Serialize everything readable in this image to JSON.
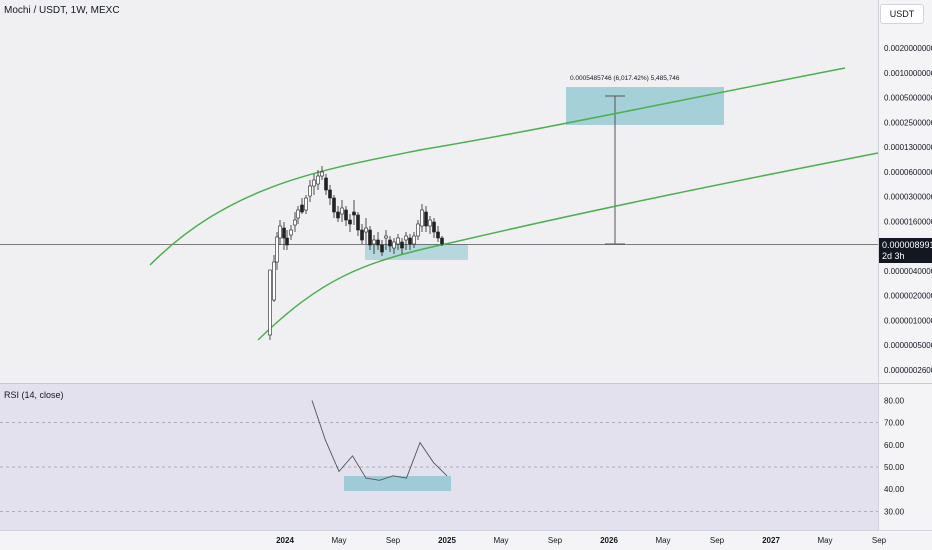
{
  "header": {
    "title": "Mochi / USDT, 1W, MEXC",
    "currency_button": "USDT"
  },
  "price_tag": {
    "value": "0.0000089919",
    "countdown": "2d 3h"
  },
  "measure": {
    "label": "0.0005485746 (6,017.42%) 5,485,746"
  },
  "indicator": {
    "label": "RSI (14, close)"
  },
  "colors": {
    "background": "#f0f0f3",
    "rsi_background": "#e3e1ee",
    "trend_line": "#4caf50",
    "highlight_box": "#8ec6cf",
    "candle_up": "#ffffff",
    "candle_down": "#222222"
  },
  "chart_data": [
    {
      "type": "candlestick",
      "title": "Mochi / USDT, 1W, MEXC",
      "yscale": "log",
      "x_tick_labels": [
        "2024",
        "May",
        "Sep",
        "2025",
        "May",
        "Sep",
        "2026",
        "May",
        "Sep",
        "2027",
        "May",
        "Sep"
      ],
      "y_tick_labels": [
        "0.0020000000",
        "0.0010000000",
        "0.0005000000",
        "0.0002500000",
        "0.0001300000",
        "0.0000600000",
        "0.0000300000",
        "0.0000160000",
        "0.0000089919",
        "0.0000040000",
        "0.0000020000",
        "0.0000010000",
        "0.0000005000",
        "0.0000002600"
      ],
      "last_price": 8.9919e-06,
      "channel_upper": [
        [
          "2023-09",
          4e-06
        ],
        [
          "2024-03",
          4.2e-05
        ],
        [
          "2025-01",
          0.00019
        ],
        [
          "2026-01",
          0.00055
        ],
        [
          "2026-10",
          0.0011
        ]
      ],
      "channel_lower": [
        [
          "2023-11",
          4e-07
        ],
        [
          "2024-09",
          5.5e-06
        ],
        [
          "2025-01",
          9e-06
        ],
        [
          "2026-01",
          3.1e-05
        ],
        [
          "2026-11",
          7.5e-05
        ]
      ],
      "target_box": {
        "x": [
          "2025-08",
          "2026-05"
        ],
        "y": [
          0.00024,
          0.00072
        ]
      },
      "support_box": {
        "x": [
          "2024-07",
          "2025-01"
        ],
        "y": [
          6e-06,
          9e-06
        ]
      }
    },
    {
      "type": "line",
      "title": "RSI (14, close)",
      "y_tick_labels": [
        "80.00",
        "70.00",
        "60.00",
        "50.00",
        "40.00",
        "30.00"
      ],
      "ylim": [
        27,
        82
      ],
      "bands": [
        70,
        50,
        30
      ],
      "x": [
        "2024-03",
        "2024-04",
        "2024-05",
        "2024-06",
        "2024-07",
        "2024-08",
        "2024-09",
        "2024-10",
        "2024-11",
        "2024-12",
        "2025-01"
      ],
      "values": [
        80,
        62,
        48,
        55,
        45,
        44,
        46,
        45,
        61,
        52,
        46
      ],
      "highlight_box": {
        "x": [
          "2024-05",
          "2025-01"
        ],
        "y": [
          40,
          47
        ]
      }
    }
  ]
}
